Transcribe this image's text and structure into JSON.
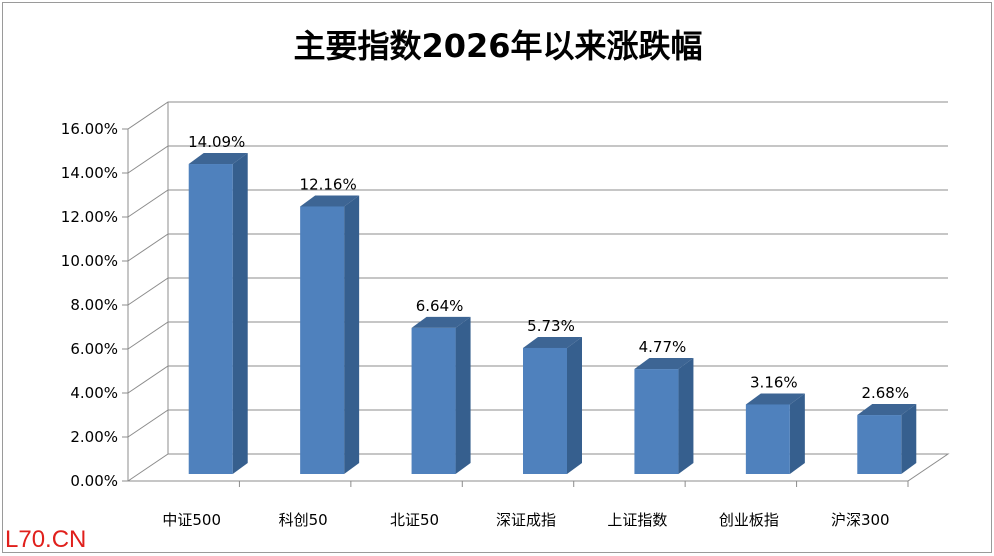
{
  "chart_data": {
    "type": "bar",
    "title": "主要指数2026年以来涨跌幅",
    "categories": [
      "中证500",
      "科创50",
      "北证50",
      "深证成指",
      "上证指数",
      "创业板指",
      "沪深300"
    ],
    "values": [
      14.09,
      12.16,
      6.64,
      5.73,
      4.77,
      3.16,
      2.68
    ],
    "data_labels": [
      "14.09%",
      "12.16%",
      "6.64%",
      "5.73%",
      "4.77%",
      "3.16%",
      "2.68%"
    ],
    "y_ticks": [
      "0.00%",
      "2.00%",
      "4.00%",
      "6.00%",
      "8.00%",
      "10.00%",
      "12.00%",
      "14.00%",
      "16.00%"
    ],
    "ylim": [
      0,
      16
    ],
    "ytick_step": 2,
    "grid": true,
    "legend": "none",
    "three_d": true,
    "bar_color": "#4f81bd",
    "bar_side_color": "#365f8e",
    "bar_top_color": "#3d6594"
  },
  "watermark": "L70.CN"
}
